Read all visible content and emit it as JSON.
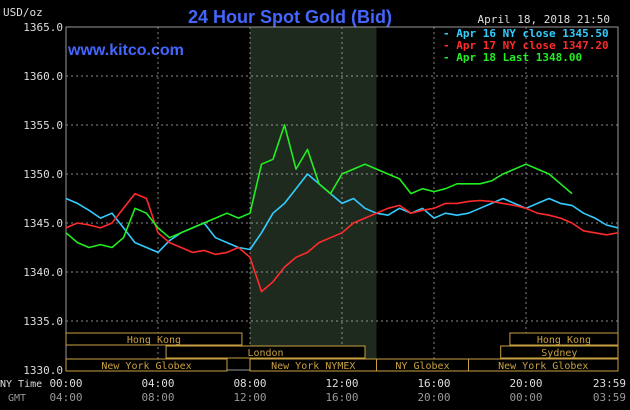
{
  "header": {
    "unit": "USD/oz",
    "title": "24 Hour Spot Gold (Bid)",
    "watermark": "www.kitco.com",
    "datetime": "April 18, 2018 21:50"
  },
  "legend": [
    {
      "label": "Apr 16 NY close 1345.50",
      "color": "#33ccff"
    },
    {
      "label": "Apr 17 NY close 1347.20",
      "color": "#ff2a2a"
    },
    {
      "label": "Apr 18 Last 1348.00",
      "color": "#22ee22"
    }
  ],
  "sessions": [
    {
      "label": "Hong Kong",
      "row": 0,
      "start": 0,
      "end": 7.65
    },
    {
      "label": "Hong Kong",
      "row": 0,
      "start": 19.3,
      "end": 24
    },
    {
      "label": "London",
      "row": 1,
      "start": 4.35,
      "end": 13.0
    },
    {
      "label": "Sydney",
      "row": 1,
      "start": 18.9,
      "end": 24
    },
    {
      "label": "New York Globex",
      "row": 2,
      "start": 0,
      "end": 7.0
    },
    {
      "label": "New York NYMEX",
      "row": 2,
      "start": 8.0,
      "end": 13.5
    },
    {
      "label": "NY Globex",
      "row": 2,
      "start": 13.5,
      "end": 17.5
    },
    {
      "label": "New York Globex",
      "row": 2,
      "start": 17.5,
      "end": 24
    }
  ],
  "axis_labels": {
    "ny_time": "NY Time",
    "gmt": "GMT"
  },
  "chart_data": {
    "type": "line",
    "ylim": [
      1330,
      1365
    ],
    "xlim": [
      0,
      24
    ],
    "y_ticks": [
      "1330.0",
      "1335.0",
      "1340.0",
      "1345.0",
      "1350.0",
      "1355.0",
      "1360.0",
      "1365.0"
    ],
    "x_ticks_ny": [
      "00:00",
      "04:00",
      "08:00",
      "12:00",
      "16:00",
      "20:00",
      "23:59"
    ],
    "x_ticks_gmt": [
      "04:00",
      "08:00",
      "12:00",
      "16:00",
      "20:00",
      "00:00",
      "03:59"
    ],
    "highlight_range": [
      8.0,
      13.5
    ],
    "series": [
      {
        "name": "Apr 16 NY close 1345.50",
        "color": "#33ccff",
        "x": [
          0,
          0.5,
          1,
          1.5,
          2,
          2.5,
          3,
          3.5,
          4,
          4.5,
          5,
          5.5,
          6,
          6.5,
          7,
          7.5,
          8,
          8.5,
          9,
          9.5,
          10,
          10.5,
          11,
          11.5,
          12,
          12.5,
          13,
          13.5,
          14,
          14.5,
          15,
          15.5,
          16,
          16.5,
          17,
          17.5,
          18,
          18.5,
          19,
          19.5,
          20,
          20.5,
          21,
          21.5,
          22,
          22.5,
          23,
          23.5,
          24
        ],
        "values": [
          1347.5,
          1347.0,
          1346.3,
          1345.5,
          1346.0,
          1344.5,
          1343.0,
          1342.5,
          1342.0,
          1343.2,
          1344.0,
          1344.5,
          1345.0,
          1343.5,
          1343.0,
          1342.5,
          1342.3,
          1344.0,
          1346.0,
          1347.0,
          1348.5,
          1350.0,
          1349.0,
          1348.0,
          1347.0,
          1347.5,
          1346.5,
          1346.0,
          1345.8,
          1346.5,
          1346.0,
          1346.5,
          1345.5,
          1346.0,
          1345.8,
          1346.0,
          1346.5,
          1347.0,
          1347.5,
          1347.0,
          1346.5,
          1347.0,
          1347.5,
          1347.0,
          1346.8,
          1346.0,
          1345.5,
          1344.8,
          1344.5
        ]
      },
      {
        "name": "Apr 17 NY close 1347.20",
        "color": "#ff2a2a",
        "x": [
          0,
          0.5,
          1,
          1.5,
          2,
          2.5,
          3,
          3.5,
          4,
          4.5,
          5,
          5.5,
          6,
          6.5,
          7,
          7.5,
          8,
          8.5,
          9,
          9.5,
          10,
          10.5,
          11,
          11.5,
          12,
          12.5,
          13,
          13.5,
          14,
          14.5,
          15,
          15.5,
          16,
          16.5,
          17,
          17.5,
          18,
          18.5,
          19,
          19.5,
          20,
          20.5,
          21,
          21.5,
          22,
          22.5,
          23,
          23.5,
          24
        ],
        "values": [
          1344.5,
          1345.0,
          1344.8,
          1344.5,
          1345.0,
          1346.5,
          1348.0,
          1347.5,
          1344.0,
          1343.0,
          1342.5,
          1342.0,
          1342.2,
          1341.8,
          1342.0,
          1342.5,
          1341.5,
          1338.0,
          1339.0,
          1340.5,
          1341.5,
          1342.0,
          1343.0,
          1343.5,
          1344.0,
          1345.0,
          1345.5,
          1346.0,
          1346.5,
          1346.8,
          1346.0,
          1346.3,
          1346.5,
          1347.0,
          1347.0,
          1347.2,
          1347.3,
          1347.2,
          1347.0,
          1346.8,
          1346.5,
          1346.0,
          1345.8,
          1345.5,
          1345.0,
          1344.2,
          1344.0,
          1343.8,
          1344.0
        ]
      },
      {
        "name": "Apr 18 Last 1348.00",
        "color": "#22ee22",
        "x": [
          0,
          0.5,
          1,
          1.5,
          2,
          2.5,
          3,
          3.5,
          4,
          4.5,
          5,
          5.5,
          6,
          6.5,
          7,
          7.5,
          8,
          8.5,
          9,
          9.5,
          10,
          10.5,
          11,
          11.5,
          12,
          12.5,
          13,
          13.5,
          14,
          14.5,
          15,
          15.5,
          16,
          16.5,
          17,
          17.5,
          18,
          18.5,
          19,
          19.5,
          20,
          20.5,
          21,
          21.5,
          22
        ],
        "values": [
          1344.0,
          1343.0,
          1342.5,
          1342.8,
          1342.5,
          1343.5,
          1346.5,
          1346.0,
          1344.5,
          1343.5,
          1344.0,
          1344.5,
          1345.0,
          1345.5,
          1346.0,
          1345.5,
          1346.0,
          1351.0,
          1351.5,
          1355.0,
          1350.5,
          1352.5,
          1349.0,
          1348.0,
          1350.0,
          1350.5,
          1351.0,
          1350.5,
          1350.0,
          1349.5,
          1348.0,
          1348.5,
          1348.2,
          1348.5,
          1349.0,
          1349.0,
          1349.0,
          1349.3,
          1350.0,
          1350.5,
          1351.0,
          1350.5,
          1350.0,
          1349.0,
          1348.0
        ]
      }
    ]
  }
}
